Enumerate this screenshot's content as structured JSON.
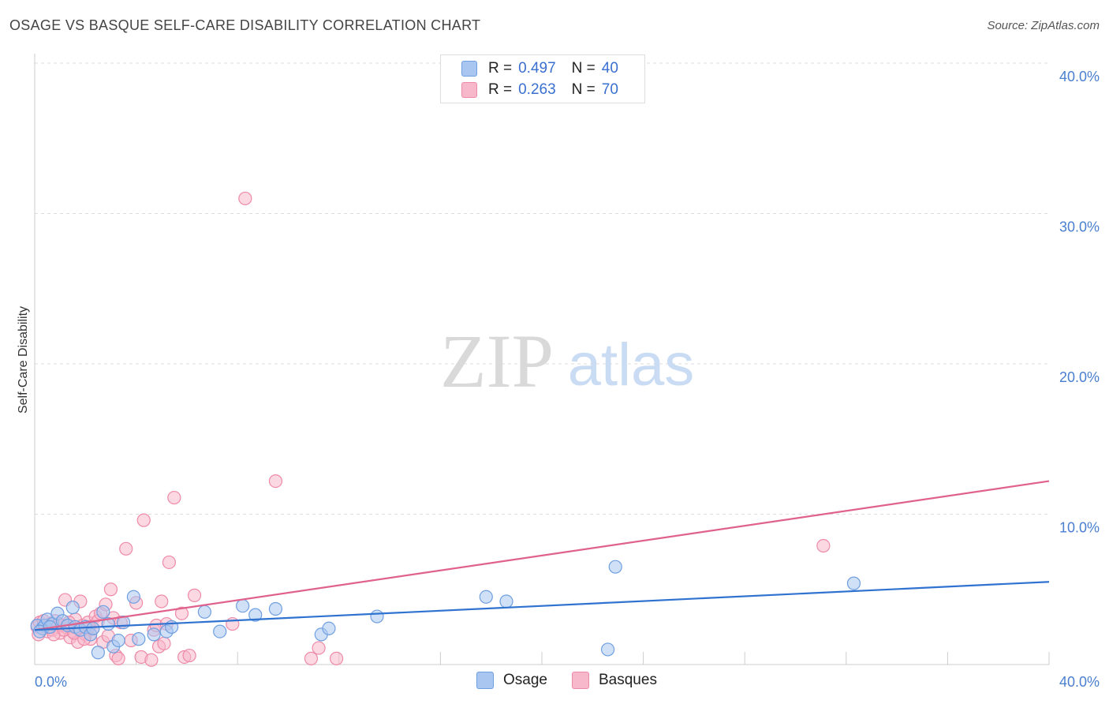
{
  "header": {
    "title": "OSAGE VS BASQUE SELF-CARE DISABILITY CORRELATION CHART",
    "source": "Source: ZipAtlas.com"
  },
  "watermark": {
    "zip": "ZIP",
    "atlas": "atlas"
  },
  "legend": {
    "rows": [
      {
        "r_label": "R =",
        "r_value": "0.497",
        "n_label": "N =",
        "n_value": "40"
      },
      {
        "r_label": "R =",
        "r_value": "0.263",
        "n_label": "N =",
        "n_value": "70"
      }
    ]
  },
  "bottom_legend": {
    "osage": "Osage",
    "basques": "Basques"
  },
  "colors": {
    "osage_fill": "#a9c6f0",
    "osage_stroke": "#6f9fe0",
    "osage_line": "#2f72d0",
    "basques_fill": "#f7b8cb",
    "basques_stroke": "#ee8aa8",
    "basques_line": "#e0628c",
    "tick_text": "#4a7fcf",
    "grid": "#dddddd"
  },
  "chart_data": {
    "type": "scatter",
    "title": "OSAGE VS BASQUE SELF-CARE DISABILITY CORRELATION CHART",
    "xlabel": "",
    "ylabel": "Self-Care Disability",
    "xlim": [
      0,
      40
    ],
    "ylim": [
      0,
      40
    ],
    "x_ticks": [
      "0.0%",
      "40.0%"
    ],
    "y_ticks": [
      {
        "value": 40,
        "label": "40.0%"
      },
      {
        "value": 30,
        "label": "30.0%"
      },
      {
        "value": 20,
        "label": "20.0%"
      },
      {
        "value": 10,
        "label": "10.0%"
      }
    ],
    "series": [
      {
        "name": "Osage",
        "R": 0.497,
        "N": 40,
        "trend": {
          "x": [
            0,
            40
          ],
          "y": [
            2.3,
            5.5
          ]
        },
        "points": [
          [
            0.1,
            2.6
          ],
          [
            0.3,
            2.4
          ],
          [
            0.4,
            2.6
          ],
          [
            0.5,
            3.0
          ],
          [
            0.7,
            2.7
          ],
          [
            0.9,
            3.4
          ],
          [
            1.1,
            2.9
          ],
          [
            1.3,
            2.6
          ],
          [
            1.5,
            3.8
          ],
          [
            1.6,
            2.5
          ],
          [
            1.8,
            2.3
          ],
          [
            2.0,
            2.5
          ],
          [
            2.2,
            2.0
          ],
          [
            2.3,
            2.4
          ],
          [
            2.5,
            0.8
          ],
          [
            2.7,
            3.5
          ],
          [
            2.9,
            2.7
          ],
          [
            3.1,
            1.2
          ],
          [
            3.3,
            1.6
          ],
          [
            3.5,
            2.8
          ],
          [
            3.9,
            4.5
          ],
          [
            4.1,
            1.7
          ],
          [
            4.7,
            2.0
          ],
          [
            5.2,
            2.2
          ],
          [
            5.4,
            2.5
          ],
          [
            6.7,
            3.5
          ],
          [
            7.3,
            2.2
          ],
          [
            8.2,
            3.9
          ],
          [
            8.7,
            3.3
          ],
          [
            9.5,
            3.7
          ],
          [
            11.3,
            2.0
          ],
          [
            11.6,
            2.4
          ],
          [
            13.5,
            3.2
          ],
          [
            17.8,
            4.5
          ],
          [
            18.6,
            4.2
          ],
          [
            22.9,
            6.5
          ],
          [
            22.6,
            1.0
          ],
          [
            32.3,
            5.4
          ],
          [
            0.2,
            2.2
          ],
          [
            0.6,
            2.5
          ]
        ]
      },
      {
        "name": "Basques",
        "R": 0.263,
        "N": 70,
        "trend": {
          "x": [
            0,
            40
          ],
          "y": [
            2.3,
            12.2
          ]
        },
        "points": [
          [
            0.1,
            2.5
          ],
          [
            0.2,
            2.8
          ],
          [
            0.3,
            2.4
          ],
          [
            0.4,
            2.6
          ],
          [
            0.5,
            2.2
          ],
          [
            0.6,
            2.7
          ],
          [
            0.7,
            2.3
          ],
          [
            0.8,
            2.9
          ],
          [
            0.9,
            2.5
          ],
          [
            1.0,
            2.1
          ],
          [
            1.1,
            2.6
          ],
          [
            1.2,
            4.3
          ],
          [
            1.3,
            2.4
          ],
          [
            1.4,
            1.8
          ],
          [
            1.5,
            2.2
          ],
          [
            1.6,
            3.0
          ],
          [
            1.7,
            1.5
          ],
          [
            1.8,
            4.2
          ],
          [
            1.9,
            2.6
          ],
          [
            2.0,
            2.0
          ],
          [
            2.1,
            2.8
          ],
          [
            2.2,
            1.7
          ],
          [
            2.3,
            2.4
          ],
          [
            2.4,
            3.2
          ],
          [
            2.5,
            2.9
          ],
          [
            2.6,
            3.4
          ],
          [
            2.7,
            1.5
          ],
          [
            2.8,
            4.0
          ],
          [
            2.9,
            1.9
          ],
          [
            3.0,
            5.0
          ],
          [
            3.1,
            3.1
          ],
          [
            3.2,
            0.6
          ],
          [
            3.3,
            0.4
          ],
          [
            3.4,
            2.8
          ],
          [
            3.6,
            7.7
          ],
          [
            3.8,
            1.6
          ],
          [
            4.0,
            4.1
          ],
          [
            4.2,
            0.5
          ],
          [
            4.3,
            9.6
          ],
          [
            4.6,
            0.3
          ],
          [
            4.7,
            2.3
          ],
          [
            4.8,
            2.6
          ],
          [
            4.9,
            1.2
          ],
          [
            5.0,
            4.2
          ],
          [
            5.1,
            1.4
          ],
          [
            5.2,
            2.7
          ],
          [
            5.3,
            6.8
          ],
          [
            5.5,
            11.1
          ],
          [
            5.8,
            3.4
          ],
          [
            5.9,
            0.5
          ],
          [
            6.1,
            0.6
          ],
          [
            6.3,
            4.6
          ],
          [
            7.8,
            2.7
          ],
          [
            8.3,
            31.0
          ],
          [
            9.5,
            12.2
          ],
          [
            10.9,
            0.4
          ],
          [
            11.2,
            1.1
          ],
          [
            11.9,
            0.4
          ],
          [
            31.1,
            7.9
          ],
          [
            0.15,
            2.0
          ],
          [
            0.35,
            2.9
          ],
          [
            0.55,
            2.5
          ],
          [
            0.75,
            2.0
          ],
          [
            0.95,
            2.7
          ],
          [
            1.15,
            2.3
          ],
          [
            1.35,
            2.8
          ],
          [
            1.55,
            2.1
          ],
          [
            1.75,
            2.4
          ],
          [
            1.95,
            1.7
          ],
          [
            2.15,
            2.5
          ]
        ]
      }
    ]
  }
}
